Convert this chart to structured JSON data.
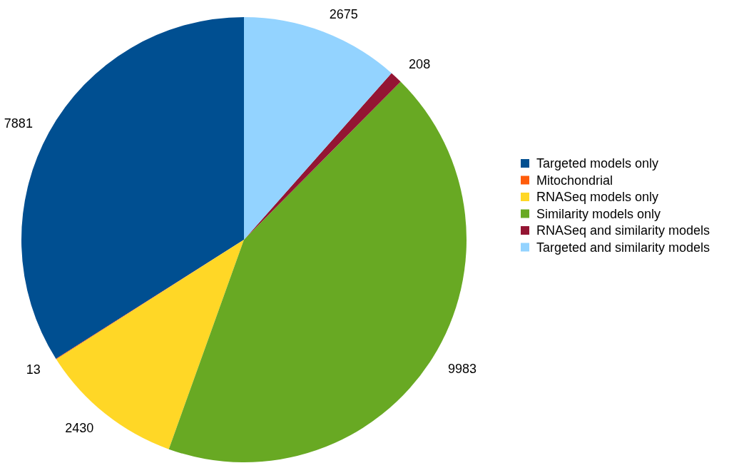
{
  "chart_data": {
    "type": "pie",
    "categories": [
      "Targeted models only",
      "Mitochondrial",
      "RNASeq models only",
      "Similarity models only",
      "RNASeq and similarity models",
      "Targeted and similarity models"
    ],
    "values": [
      7881,
      13,
      2430,
      9983,
      208,
      2675
    ],
    "colors": [
      "#004f91",
      "#ff5c0b",
      "#ffd726",
      "#68a923",
      "#941533",
      "#93d3ff"
    ],
    "data_labels": true,
    "legend": "right"
  }
}
